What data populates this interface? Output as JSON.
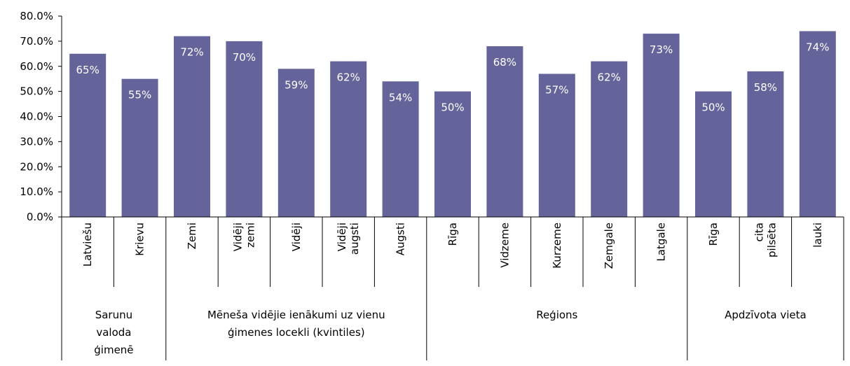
{
  "chart_data": {
    "type": "bar",
    "title": "",
    "xlabel": "",
    "ylabel": "",
    "ylim": [
      0,
      80
    ],
    "y_ticks": [
      "0.0%",
      "10.0%",
      "20.0%",
      "30.0%",
      "40.0%",
      "50.0%",
      "60.0%",
      "70.0%",
      "80.0%"
    ],
    "grid": false,
    "legend": "none",
    "bar_color": "#64649a",
    "groups": [
      {
        "name": "Sarunu valoda ģimenē",
        "name_lines": [
          "Sarunu",
          "valoda",
          "ģimenē"
        ],
        "categories": [
          {
            "label_lines": [
              "Latviešu"
            ],
            "value": 65,
            "data_label": "65%"
          },
          {
            "label_lines": [
              "Krievu"
            ],
            "value": 55,
            "data_label": "55%"
          }
        ]
      },
      {
        "name": "Mēneša vidējie ienākumi uz vienu ģimenes locekli (kvintiles)",
        "name_lines": [
          "Mēneša vidējie ienākumi uz vienu",
          "ģimenes locekli (kvintiles)"
        ],
        "categories": [
          {
            "label_lines": [
              "Zemi"
            ],
            "value": 72,
            "data_label": "72%"
          },
          {
            "label_lines": [
              "Vidēji",
              "zemi"
            ],
            "value": 70,
            "data_label": "70%"
          },
          {
            "label_lines": [
              "Vidēji"
            ],
            "value": 59,
            "data_label": "59%"
          },
          {
            "label_lines": [
              "Vidēji",
              "augsti"
            ],
            "value": 62,
            "data_label": "62%"
          },
          {
            "label_lines": [
              "Augsti"
            ],
            "value": 54,
            "data_label": "54%"
          }
        ]
      },
      {
        "name": "Reģions",
        "name_lines": [
          "Reģions"
        ],
        "categories": [
          {
            "label_lines": [
              "Rīga"
            ],
            "value": 50,
            "data_label": "50%"
          },
          {
            "label_lines": [
              "Vidzeme"
            ],
            "value": 68,
            "data_label": "68%"
          },
          {
            "label_lines": [
              "Kurzeme"
            ],
            "value": 57,
            "data_label": "57%"
          },
          {
            "label_lines": [
              "Zemgale"
            ],
            "value": 62,
            "data_label": "62%"
          },
          {
            "label_lines": [
              "Latgale"
            ],
            "value": 73,
            "data_label": "73%"
          }
        ]
      },
      {
        "name": "Apdzīvota vieta",
        "name_lines": [
          "Apdzīvota vieta"
        ],
        "categories": [
          {
            "label_lines": [
              "Rīga"
            ],
            "value": 50,
            "data_label": "50%"
          },
          {
            "label_lines": [
              "cita",
              "pilsēta"
            ],
            "value": 58,
            "data_label": "58%"
          },
          {
            "label_lines": [
              "lauki"
            ],
            "value": 74,
            "data_label": "74%"
          }
        ]
      }
    ]
  }
}
